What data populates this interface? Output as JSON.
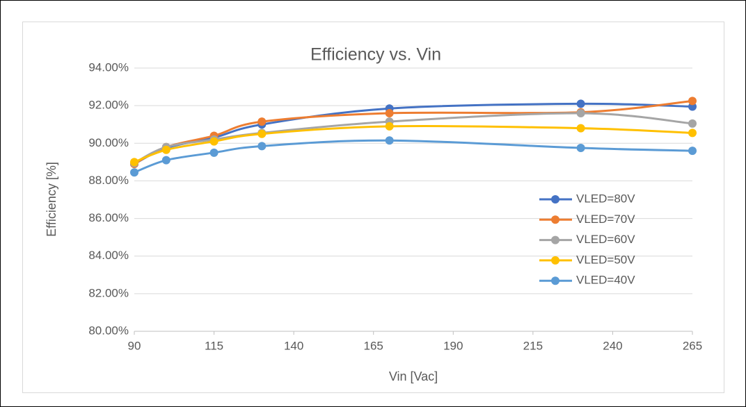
{
  "chart_data": {
    "type": "line",
    "title": "Efficiency vs. Vin",
    "x_label": "Vin [Vac]",
    "y_label": "Efficiency [%]",
    "x": [
      90,
      100,
      115,
      130,
      170,
      230,
      265
    ],
    "series": [
      {
        "name": "VLED=80V",
        "color": "#4472c4",
        "values": [
          88.9,
          89.75,
          90.3,
          91.0,
          91.85,
          92.1,
          91.95
        ]
      },
      {
        "name": "VLED=70V",
        "color": "#ed7d31",
        "values": [
          88.9,
          89.8,
          90.4,
          91.15,
          91.6,
          91.65,
          92.25
        ]
      },
      {
        "name": "VLED=60V",
        "color": "#a5a5a5",
        "values": [
          88.95,
          89.8,
          90.2,
          90.55,
          91.15,
          91.6,
          91.05
        ]
      },
      {
        "name": "VLED=50V",
        "color": "#ffc000",
        "values": [
          89.0,
          89.65,
          90.1,
          90.5,
          90.9,
          90.8,
          90.55
        ]
      },
      {
        "name": "VLED=40V",
        "color": "#5b9bd5",
        "values": [
          88.45,
          89.1,
          89.5,
          89.85,
          90.15,
          89.75,
          89.6
        ]
      }
    ],
    "xlim": [
      90,
      265
    ],
    "xticks": [
      90,
      115,
      140,
      165,
      190,
      215,
      240,
      265
    ],
    "ylim": [
      80,
      94
    ],
    "yticks": [
      {
        "value": 80,
        "label": "80.00%"
      },
      {
        "value": 82,
        "label": "82.00%"
      },
      {
        "value": 84,
        "label": "84.00%"
      },
      {
        "value": 86,
        "label": "86.00%"
      },
      {
        "value": 88,
        "label": "88.00%"
      },
      {
        "value": 90,
        "label": "90.00%"
      },
      {
        "value": 92,
        "label": "92.00%"
      },
      {
        "value": 94,
        "label": "94.00%"
      }
    ],
    "grid": true,
    "legend": "right"
  }
}
